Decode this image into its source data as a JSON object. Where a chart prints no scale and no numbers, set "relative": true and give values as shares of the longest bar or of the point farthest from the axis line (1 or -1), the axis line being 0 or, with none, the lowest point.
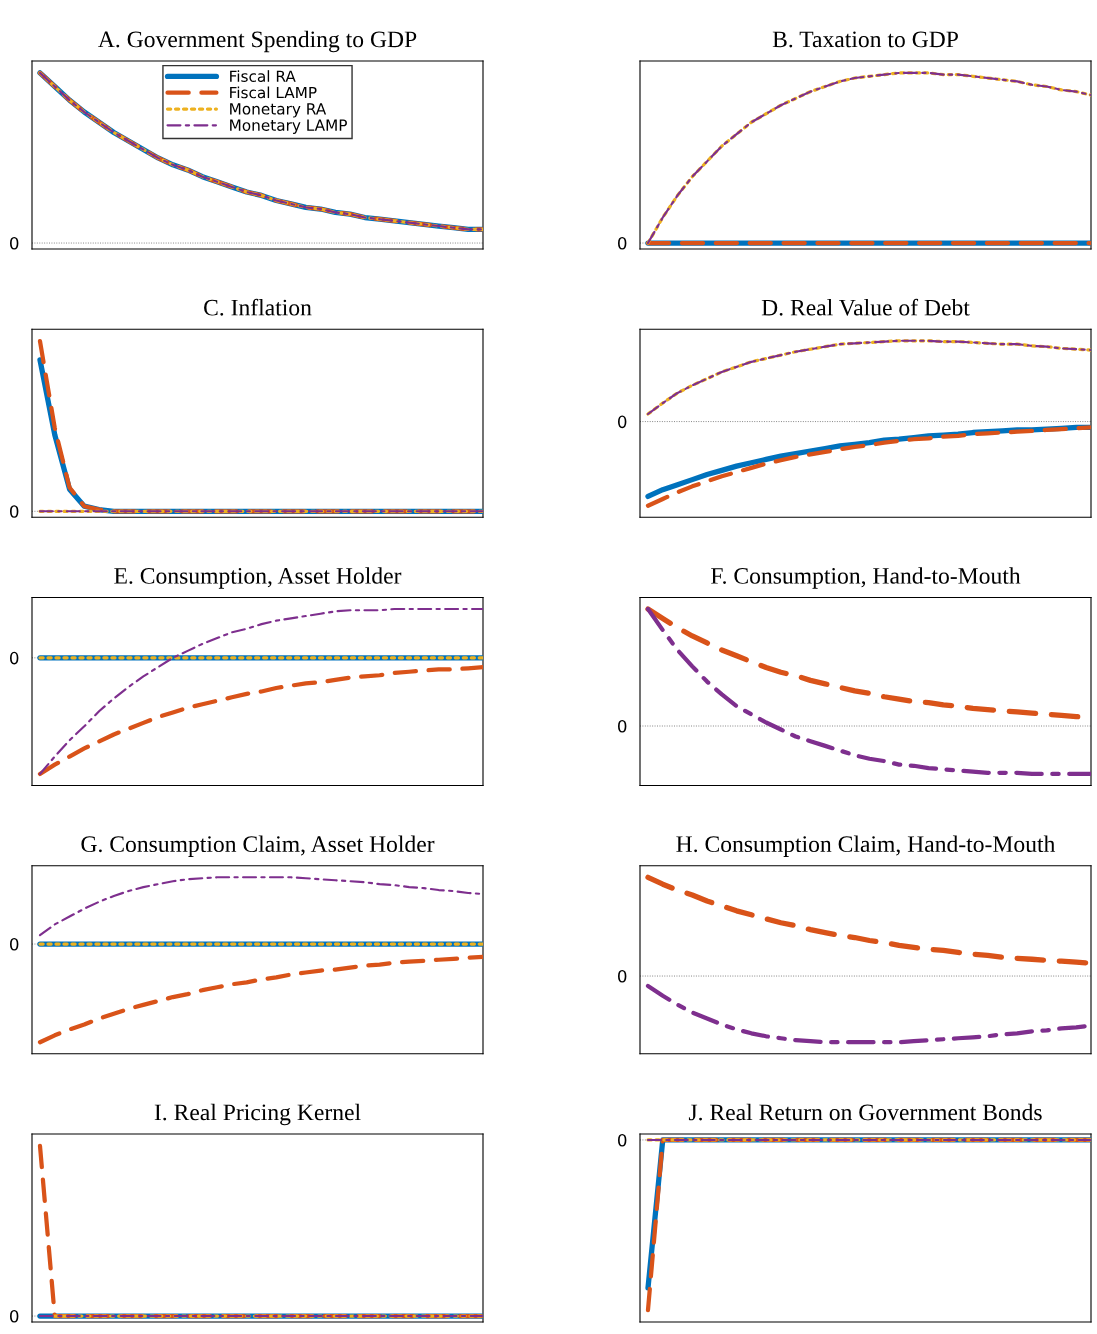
{
  "chart_data": [
    {
      "type": "line",
      "title": "A. Government Spending to GDP",
      "relative": true,
      "legend": "top",
      "categories": [
        null,
        null,
        null,
        null,
        null,
        null,
        null,
        null,
        null,
        null,
        null,
        null,
        null,
        null,
        null,
        null,
        null,
        null,
        null,
        null,
        null,
        null,
        null,
        null,
        null,
        null,
        null,
        null,
        null,
        null,
        null
      ],
      "ref_lines": [
        {
          "axis": "y",
          "value": 0,
          "label": "0",
          "color": "#808080",
          "line_style": "dotted"
        }
      ],
      "series": [
        {
          "name": "Fiscal RA",
          "color": "#0072bd",
          "line_style": "solid",
          "values": [
            1,
            0.92,
            0.84,
            0.77,
            0.71,
            0.65,
            0.6,
            0.55,
            0.5,
            0.46,
            0.43,
            0.39,
            0.36,
            0.33,
            0.3,
            0.28,
            0.25,
            0.23,
            0.21,
            0.2,
            0.18,
            0.17,
            0.15,
            0.14,
            0.13,
            0.12,
            0.11,
            0.1,
            0.09,
            0.08,
            0.08
          ]
        },
        {
          "name": "Fiscal LAMP",
          "color": "#d95319",
          "line_style": "dashed",
          "values": [
            1,
            0.92,
            0.84,
            0.77,
            0.71,
            0.65,
            0.6,
            0.55,
            0.5,
            0.46,
            0.43,
            0.39,
            0.36,
            0.33,
            0.3,
            0.28,
            0.25,
            0.23,
            0.21,
            0.2,
            0.18,
            0.17,
            0.15,
            0.14,
            0.13,
            0.12,
            0.11,
            0.1,
            0.09,
            0.08,
            0.08
          ]
        },
        {
          "name": "Monetary RA",
          "color": "#edb120",
          "line_style": "dotted",
          "values": [
            1,
            0.92,
            0.84,
            0.77,
            0.71,
            0.65,
            0.6,
            0.55,
            0.5,
            0.46,
            0.43,
            0.39,
            0.36,
            0.33,
            0.3,
            0.28,
            0.25,
            0.23,
            0.21,
            0.2,
            0.18,
            0.17,
            0.15,
            0.14,
            0.13,
            0.12,
            0.11,
            0.1,
            0.09,
            0.08,
            0.08
          ]
        },
        {
          "name": "Monetary LAMP",
          "color": "#7e2f8e",
          "line_style": "dashdot",
          "values": [
            1,
            0.92,
            0.84,
            0.77,
            0.71,
            0.65,
            0.6,
            0.55,
            0.5,
            0.46,
            0.43,
            0.39,
            0.36,
            0.33,
            0.3,
            0.28,
            0.25,
            0.23,
            0.21,
            0.2,
            0.18,
            0.17,
            0.15,
            0.14,
            0.13,
            0.12,
            0.11,
            0.1,
            0.09,
            0.08,
            0.08
          ]
        }
      ]
    },
    {
      "type": "line",
      "title": "B. Taxation to GDP",
      "relative": true,
      "categories": [
        null,
        null,
        null,
        null,
        null,
        null,
        null,
        null,
        null,
        null,
        null,
        null,
        null,
        null,
        null,
        null,
        null,
        null,
        null,
        null,
        null,
        null,
        null,
        null,
        null,
        null,
        null,
        null,
        null,
        null,
        null
      ],
      "ref_lines": [
        {
          "axis": "y",
          "value": 0,
          "label": "0",
          "color": "#808080",
          "line_style": "dotted"
        }
      ],
      "series": [
        {
          "color": "#0072bd",
          "line_style": "solid",
          "values": [
            0,
            0,
            0,
            0,
            0,
            0,
            0,
            0,
            0,
            0,
            0,
            0,
            0,
            0,
            0,
            0,
            0,
            0,
            0,
            0,
            0,
            0,
            0,
            0,
            0,
            0,
            0,
            0,
            0,
            0,
            0
          ]
        },
        {
          "color": "#d95319",
          "line_style": "dashed",
          "values": [
            0,
            0,
            0,
            0,
            0,
            0,
            0,
            0,
            0,
            0,
            0,
            0,
            0,
            0,
            0,
            0,
            0,
            0,
            0,
            0,
            0,
            0,
            0,
            0,
            0,
            0,
            0,
            0,
            0,
            0,
            0
          ]
        },
        {
          "color": "#edb120",
          "line_style": "dotted",
          "values": [
            0,
            0.15,
            0.28,
            0.39,
            0.48,
            0.57,
            0.64,
            0.71,
            0.76,
            0.81,
            0.85,
            0.89,
            0.92,
            0.95,
            0.97,
            0.98,
            0.99,
            1,
            1,
            1,
            0.99,
            0.99,
            0.98,
            0.97,
            0.96,
            0.95,
            0.93,
            0.92,
            0.9,
            0.89,
            0.87
          ]
        },
        {
          "color": "#7e2f8e",
          "line_style": "dashdot",
          "values": [
            0,
            0.15,
            0.28,
            0.39,
            0.48,
            0.57,
            0.64,
            0.71,
            0.76,
            0.81,
            0.85,
            0.89,
            0.92,
            0.95,
            0.97,
            0.98,
            0.99,
            1,
            1,
            1,
            0.99,
            0.99,
            0.98,
            0.97,
            0.96,
            0.95,
            0.93,
            0.92,
            0.9,
            0.89,
            0.87
          ]
        }
      ]
    },
    {
      "type": "line",
      "title": "C. Inflation",
      "relative": true,
      "categories": [
        null,
        null,
        null,
        null,
        null,
        null,
        null,
        null,
        null,
        null,
        null,
        null,
        null,
        null,
        null,
        null,
        null,
        null,
        null,
        null,
        null,
        null,
        null,
        null,
        null,
        null,
        null,
        null,
        null,
        null,
        null
      ],
      "ref_lines": [
        {
          "axis": "y",
          "value": 0,
          "label": "0",
          "color": "#808080",
          "line_style": "dotted"
        }
      ],
      "series": [
        {
          "color": "#0072bd",
          "line_style": "solid",
          "values": [
            0.89,
            0.45,
            0.13,
            0.03,
            0.01,
            0,
            0,
            0,
            0,
            0,
            0,
            0,
            0,
            0,
            0,
            0,
            0,
            0,
            0,
            0,
            0,
            0,
            0,
            0,
            0,
            0,
            0,
            0,
            0,
            0,
            0
          ]
        },
        {
          "color": "#d95319",
          "line_style": "dashed",
          "values": [
            1,
            0.49,
            0.14,
            0.03,
            0.01,
            0,
            0,
            0,
            0,
            0,
            0,
            0,
            0,
            0,
            0,
            0,
            0,
            0,
            0,
            0,
            0,
            0,
            0,
            0,
            0,
            0,
            0,
            0,
            0,
            0,
            0
          ]
        },
        {
          "color": "#edb120",
          "line_style": "dotted",
          "values": [
            0,
            0,
            0,
            0,
            0,
            0,
            0,
            0,
            0,
            0,
            0,
            0,
            0,
            0,
            0,
            0,
            0,
            0,
            0,
            0,
            0,
            0,
            0,
            0,
            0,
            0,
            0,
            0,
            0,
            0,
            0
          ]
        },
        {
          "color": "#7e2f8e",
          "line_style": "dashdot",
          "values": [
            0,
            0,
            0,
            0,
            0,
            0,
            0,
            0,
            0,
            0,
            0,
            0,
            0,
            0,
            0,
            0,
            0,
            0,
            0,
            0,
            0,
            0,
            0,
            0,
            0,
            0,
            0,
            0,
            0,
            0,
            0
          ]
        }
      ]
    },
    {
      "type": "line",
      "title": "D. Real Value of Debt",
      "relative": true,
      "categories": [
        null,
        null,
        null,
        null,
        null,
        null,
        null,
        null,
        null,
        null,
        null,
        null,
        null,
        null,
        null,
        null,
        null,
        null,
        null,
        null,
        null,
        null,
        null,
        null,
        null,
        null,
        null,
        null,
        null,
        null,
        null
      ],
      "ref_lines": [
        {
          "axis": "y",
          "value": 0,
          "label": "0",
          "color": "#808080",
          "line_style": "dotted"
        }
      ],
      "series": [
        {
          "color": "#0072bd",
          "line_style": "solid",
          "values": [
            -0.89,
            -0.81,
            -0.75,
            -0.69,
            -0.63,
            -0.58,
            -0.53,
            -0.49,
            -0.45,
            -0.41,
            -0.38,
            -0.35,
            -0.32,
            -0.29,
            -0.27,
            -0.25,
            -0.22,
            -0.21,
            -0.19,
            -0.17,
            -0.16,
            -0.15,
            -0.13,
            -0.12,
            -0.11,
            -0.1,
            -0.1,
            -0.09,
            -0.08,
            -0.07,
            -0.07
          ]
        },
        {
          "color": "#d95319",
          "line_style": "dashed",
          "values": [
            -1,
            -0.92,
            -0.84,
            -0.77,
            -0.71,
            -0.65,
            -0.6,
            -0.55,
            -0.5,
            -0.46,
            -0.42,
            -0.39,
            -0.36,
            -0.33,
            -0.3,
            -0.28,
            -0.25,
            -0.23,
            -0.21,
            -0.2,
            -0.18,
            -0.17,
            -0.15,
            -0.14,
            -0.13,
            -0.12,
            -0.11,
            -0.1,
            -0.09,
            -0.08,
            -0.07
          ]
        },
        {
          "color": "#edb120",
          "line_style": "dotted",
          "values": [
            0.09,
            0.22,
            0.34,
            0.43,
            0.51,
            0.59,
            0.65,
            0.71,
            0.75,
            0.79,
            0.83,
            0.86,
            0.89,
            0.92,
            0.93,
            0.94,
            0.95,
            0.96,
            0.96,
            0.96,
            0.95,
            0.95,
            0.94,
            0.93,
            0.92,
            0.92,
            0.9,
            0.89,
            0.87,
            0.86,
            0.85
          ]
        },
        {
          "color": "#7e2f8e",
          "line_style": "dashdot",
          "values": [
            0.09,
            0.22,
            0.34,
            0.43,
            0.51,
            0.59,
            0.65,
            0.71,
            0.75,
            0.79,
            0.83,
            0.86,
            0.89,
            0.92,
            0.93,
            0.94,
            0.95,
            0.96,
            0.96,
            0.96,
            0.95,
            0.95,
            0.94,
            0.93,
            0.92,
            0.92,
            0.9,
            0.89,
            0.87,
            0.86,
            0.85
          ]
        }
      ]
    },
    {
      "type": "line",
      "title": "E. Consumption, Asset Holder",
      "relative": true,
      "categories": [
        null,
        null,
        null,
        null,
        null,
        null,
        null,
        null,
        null,
        null,
        null,
        null,
        null,
        null,
        null,
        null,
        null,
        null,
        null,
        null,
        null,
        null,
        null,
        null,
        null,
        null,
        null,
        null,
        null,
        null,
        null
      ],
      "ref_lines": [
        {
          "axis": "y",
          "value": 0,
          "label": "0",
          "color": "#808080",
          "line_style": "dotted"
        }
      ],
      "series": [
        {
          "color": "#0072bd",
          "line_style": "solid",
          "values": [
            0,
            0,
            0,
            0,
            0,
            0,
            0,
            0,
            0,
            0,
            0,
            0,
            0,
            0,
            0,
            0,
            0,
            0,
            0,
            0,
            0,
            0,
            0,
            0,
            0,
            0,
            0,
            0,
            0,
            0,
            0
          ]
        },
        {
          "color": "#d95319",
          "line_style": "dashed",
          "values": [
            -1,
            -0.92,
            -0.85,
            -0.78,
            -0.72,
            -0.66,
            -0.61,
            -0.56,
            -0.51,
            -0.47,
            -0.43,
            -0.4,
            -0.37,
            -0.34,
            -0.31,
            -0.29,
            -0.26,
            -0.24,
            -0.22,
            -0.21,
            -0.19,
            -0.17,
            -0.16,
            -0.15,
            -0.13,
            -0.12,
            -0.11,
            -0.1,
            -0.1,
            -0.09,
            -0.08
          ]
        },
        {
          "color": "#edb120",
          "line_style": "dotted",
          "values": [
            0,
            0,
            0,
            0,
            0,
            0,
            0,
            0,
            0,
            0,
            0,
            0,
            0,
            0,
            0,
            0,
            0,
            0,
            0,
            0,
            0,
            0,
            0,
            0,
            0,
            0,
            0,
            0,
            0,
            0,
            0
          ]
        },
        {
          "color": "#7e2f8e",
          "line_style": "dashdot",
          "values": [
            -1,
            -0.85,
            -0.71,
            -0.59,
            -0.46,
            -0.35,
            -0.25,
            -0.16,
            -0.08,
            0,
            0.06,
            0.12,
            0.17,
            0.22,
            0.25,
            0.29,
            0.32,
            0.34,
            0.36,
            0.38,
            0.4,
            0.41,
            0.41,
            0.41,
            0.42,
            0.42,
            0.42,
            0.42,
            0.42,
            0.42,
            0.42
          ]
        }
      ]
    },
    {
      "type": "line",
      "title": "F. Consumption, Hand-to-Mouth",
      "relative": true,
      "categories": [
        null,
        null,
        null,
        null,
        null,
        null,
        null,
        null,
        null,
        null,
        null,
        null,
        null,
        null,
        null,
        null,
        null,
        null,
        null,
        null,
        null,
        null,
        null,
        null,
        null,
        null,
        null,
        null,
        null,
        null,
        null
      ],
      "ref_lines": [
        {
          "axis": "y",
          "value": 0,
          "label": "0",
          "color": "#808080",
          "line_style": "dotted"
        }
      ],
      "series": [
        {
          "color": "#d95319",
          "line_style": "dashed",
          "values": [
            1,
            0.92,
            0.84,
            0.77,
            0.71,
            0.65,
            0.6,
            0.55,
            0.5,
            0.46,
            0.43,
            0.39,
            0.36,
            0.33,
            0.3,
            0.28,
            0.25,
            0.23,
            0.21,
            0.2,
            0.18,
            0.17,
            0.15,
            0.14,
            0.13,
            0.12,
            0.11,
            0.1,
            0.09,
            0.08,
            0.08
          ]
        },
        {
          "color": "#7e2f8e",
          "line_style": "dashdot",
          "values": [
            1,
            0.82,
            0.65,
            0.51,
            0.38,
            0.27,
            0.17,
            0.1,
            0.03,
            -0.03,
            -0.09,
            -0.13,
            -0.17,
            -0.21,
            -0.25,
            -0.28,
            -0.3,
            -0.33,
            -0.34,
            -0.36,
            -0.37,
            -0.38,
            -0.39,
            -0.4,
            -0.4,
            -0.4,
            -0.41,
            -0.41,
            -0.41,
            -0.41,
            -0.41
          ]
        }
      ]
    },
    {
      "type": "line",
      "title": "G. Consumption Claim, Asset Holder",
      "relative": true,
      "categories": [
        null,
        null,
        null,
        null,
        null,
        null,
        null,
        null,
        null,
        null,
        null,
        null,
        null,
        null,
        null,
        null,
        null,
        null,
        null,
        null,
        null,
        null,
        null,
        null,
        null,
        null,
        null,
        null,
        null,
        null,
        null
      ],
      "ref_lines": [
        {
          "axis": "y",
          "value": 0,
          "label": "0",
          "color": "#808080",
          "line_style": "dotted"
        }
      ],
      "series": [
        {
          "color": "#0072bd",
          "line_style": "solid",
          "values": [
            0,
            0,
            0,
            0,
            0,
            0,
            0,
            0,
            0,
            0,
            0,
            0,
            0,
            0,
            0,
            0,
            0,
            0,
            0,
            0,
            0,
            0,
            0,
            0,
            0,
            0,
            0,
            0,
            0,
            0,
            0
          ]
        },
        {
          "color": "#d95319",
          "line_style": "dashed",
          "values": [
            -1,
            -0.93,
            -0.87,
            -0.82,
            -0.76,
            -0.71,
            -0.66,
            -0.62,
            -0.58,
            -0.54,
            -0.51,
            -0.47,
            -0.44,
            -0.41,
            -0.39,
            -0.36,
            -0.34,
            -0.31,
            -0.29,
            -0.27,
            -0.26,
            -0.24,
            -0.22,
            -0.21,
            -0.19,
            -0.18,
            -0.17,
            -0.16,
            -0.15,
            -0.14,
            -0.13
          ]
        },
        {
          "color": "#edb120",
          "line_style": "dotted",
          "values": [
            0,
            0,
            0,
            0,
            0,
            0,
            0,
            0,
            0,
            0,
            0,
            0,
            0,
            0,
            0,
            0,
            0,
            0,
            0,
            0,
            0,
            0,
            0,
            0,
            0,
            0,
            0,
            0,
            0,
            0,
            0
          ]
        },
        {
          "color": "#7e2f8e",
          "line_style": "dashdot",
          "values": [
            0.09,
            0.2,
            0.28,
            0.36,
            0.43,
            0.49,
            0.54,
            0.58,
            0.61,
            0.64,
            0.66,
            0.67,
            0.68,
            0.68,
            0.68,
            0.68,
            0.68,
            0.68,
            0.67,
            0.66,
            0.65,
            0.64,
            0.63,
            0.61,
            0.6,
            0.58,
            0.57,
            0.55,
            0.54,
            0.52,
            0.51
          ]
        }
      ]
    },
    {
      "type": "line",
      "title": "H. Consumption Claim, Hand-to-Mouth",
      "relative": true,
      "categories": [
        null,
        null,
        null,
        null,
        null,
        null,
        null,
        null,
        null,
        null,
        null,
        null,
        null,
        null,
        null,
        null,
        null,
        null,
        null,
        null,
        null,
        null,
        null,
        null,
        null,
        null,
        null,
        null,
        null,
        null,
        null
      ],
      "ref_lines": [
        {
          "axis": "y",
          "value": 0,
          "label": "0",
          "color": "#808080",
          "line_style": "dotted"
        }
      ],
      "series": [
        {
          "color": "#d95319",
          "line_style": "dashed",
          "values": [
            1,
            0.93,
            0.87,
            0.82,
            0.76,
            0.71,
            0.66,
            0.62,
            0.58,
            0.54,
            0.51,
            0.47,
            0.44,
            0.41,
            0.39,
            0.36,
            0.34,
            0.31,
            0.29,
            0.27,
            0.26,
            0.24,
            0.22,
            0.21,
            0.19,
            0.18,
            0.17,
            0.16,
            0.15,
            0.14,
            0.13
          ]
        },
        {
          "color": "#7e2f8e",
          "line_style": "dashdot",
          "values": [
            -0.1,
            -0.2,
            -0.29,
            -0.37,
            -0.43,
            -0.49,
            -0.54,
            -0.58,
            -0.61,
            -0.63,
            -0.65,
            -0.66,
            -0.67,
            -0.67,
            -0.67,
            -0.67,
            -0.67,
            -0.67,
            -0.66,
            -0.65,
            -0.64,
            -0.63,
            -0.62,
            -0.61,
            -0.59,
            -0.58,
            -0.56,
            -0.55,
            -0.53,
            -0.52,
            -0.5
          ]
        }
      ]
    },
    {
      "type": "line",
      "title": "I. Real Pricing Kernel",
      "relative": true,
      "categories": [
        null,
        null,
        null,
        null,
        null,
        null,
        null,
        null,
        null,
        null,
        null,
        null,
        null,
        null,
        null,
        null,
        null,
        null,
        null,
        null,
        null,
        null,
        null,
        null,
        null,
        null,
        null,
        null,
        null,
        null,
        null
      ],
      "ref_lines": [
        {
          "axis": "y",
          "value": 0,
          "label": "0",
          "color": "#808080",
          "line_style": "dotted"
        }
      ],
      "series": [
        {
          "color": "#0072bd",
          "line_style": "solid",
          "values": [
            0,
            0,
            0,
            0,
            0,
            0,
            0,
            0,
            0,
            0,
            0,
            0,
            0,
            0,
            0,
            0,
            0,
            0,
            0,
            0,
            0,
            0,
            0,
            0,
            0,
            0,
            0,
            0,
            0,
            0,
            0
          ]
        },
        {
          "color": "#d95319",
          "line_style": "dashed",
          "values": [
            1,
            0,
            0,
            0,
            0,
            0,
            0,
            0,
            0,
            0,
            0,
            0,
            0,
            0,
            0,
            0,
            0,
            0,
            0,
            0,
            0,
            0,
            0,
            0,
            0,
            0,
            0,
            0,
            0,
            0,
            0
          ]
        },
        {
          "color": "#edb120",
          "line_style": "dotted",
          "values": [
            null,
            0,
            0,
            0,
            0,
            0,
            0,
            0,
            0,
            0,
            0,
            0,
            0,
            0,
            0,
            0,
            0,
            0,
            0,
            0,
            0,
            0,
            0,
            0,
            0,
            0,
            0,
            0,
            0,
            0,
            0
          ]
        },
        {
          "color": "#7e2f8e",
          "line_style": "dashdot",
          "values": [
            0,
            0,
            0,
            0,
            0,
            0,
            0,
            0,
            0,
            0,
            0,
            0,
            0,
            0,
            0,
            0,
            0,
            0,
            0,
            0,
            0,
            0,
            0,
            0,
            0,
            0,
            0,
            0,
            0,
            0,
            0
          ]
        }
      ]
    },
    {
      "type": "line",
      "title": "J. Real Return on Government Bonds",
      "relative": true,
      "categories": [
        null,
        null,
        null,
        null,
        null,
        null,
        null,
        null,
        null,
        null,
        null,
        null,
        null,
        null,
        null,
        null,
        null,
        null,
        null,
        null,
        null,
        null,
        null,
        null,
        null,
        null,
        null,
        null,
        null,
        null,
        null
      ],
      "ref_lines": [
        {
          "axis": "y",
          "value": 0,
          "label": "0",
          "color": "#808080",
          "line_style": "dotted"
        }
      ],
      "series": [
        {
          "color": "#0072bd",
          "line_style": "solid",
          "values": [
            -0.87,
            0,
            0,
            0,
            0,
            0,
            0,
            0,
            0,
            0,
            0,
            0,
            0,
            0,
            0,
            0,
            0,
            0,
            0,
            0,
            0,
            0,
            0,
            0,
            0,
            0,
            0,
            0,
            0,
            0,
            0
          ]
        },
        {
          "color": "#d95319",
          "line_style": "dashed",
          "values": [
            -1,
            0,
            0,
            0,
            0,
            0,
            0,
            0,
            0,
            0,
            0,
            0,
            0,
            0,
            0,
            0,
            0,
            0,
            0,
            0,
            0,
            0,
            0,
            0,
            0,
            0,
            0,
            0,
            0,
            0,
            0
          ]
        },
        {
          "color": "#edb120",
          "line_style": "dotted",
          "values": [
            0,
            0,
            0,
            0,
            0,
            0,
            0,
            0,
            0,
            0,
            0,
            0,
            0,
            0,
            0,
            0,
            0,
            0,
            0,
            0,
            0,
            0,
            0,
            0,
            0,
            0,
            0,
            0,
            0,
            0,
            0
          ]
        },
        {
          "color": "#7e2f8e",
          "line_style": "dashdot",
          "values": [
            0,
            0,
            0,
            0,
            0,
            0,
            0,
            0,
            0,
            0,
            0,
            0,
            0,
            0,
            0,
            0,
            0,
            0,
            0,
            0,
            0,
            0,
            0,
            0,
            0,
            0,
            0,
            0,
            0,
            0,
            0
          ]
        }
      ]
    }
  ]
}
